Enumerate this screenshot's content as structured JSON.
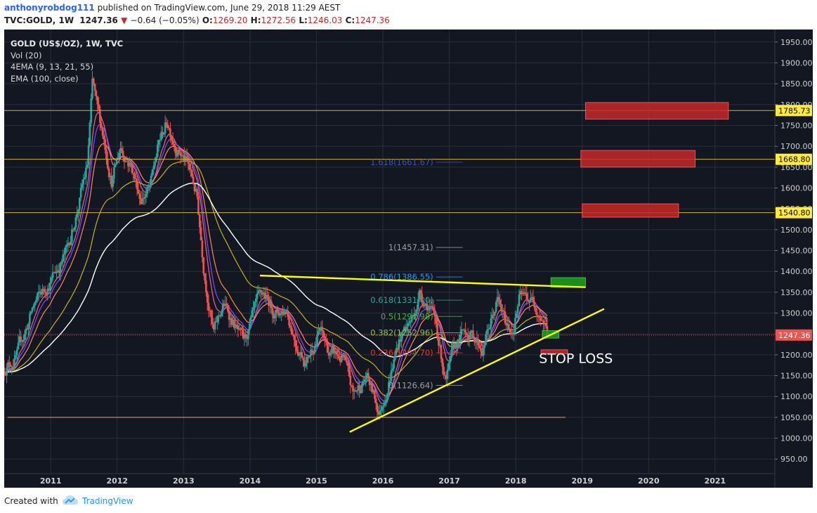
{
  "header": {
    "author": "anthonyrobdog111",
    "published_text": " published on TradingView.com, June 29, 2018 11:29 AEST",
    "symbol": "TVC:GOLD, 1W",
    "last": "1247.36",
    "change": "−0.64 (−0.05%)",
    "open_label": "O:",
    "open": "1269.20",
    "high_label": "H:",
    "high": "1272.56",
    "low_label": "L:",
    "low": "1246.03",
    "close_label": "C:",
    "close": "1247.36"
  },
  "legend": {
    "title": "GOLD (US$/OZ), 1W, TVC",
    "vol": "Vol (20)",
    "ema4": "4EMA (9, 13, 21, 55)",
    "ema100": "EMA (100, close)"
  },
  "footer": {
    "created_with": "Created with",
    "brand": "TradingView"
  },
  "colors": {
    "background": "#131722",
    "grid": "#2a2e39",
    "up_candle": "#26a69a",
    "down_candle": "#ef5350",
    "trendline": "#ffff00",
    "horizontal_level": "#d4af37",
    "target_box": "#c62828",
    "entry_box": "#1aa61a",
    "ema100": "#ffffff",
    "support_line": "#f0a050"
  },
  "chart_data": {
    "type": "candlestick",
    "y_range": [
      915,
      1980
    ],
    "y_ticks": [
      950,
      1000,
      1050,
      1100,
      1150,
      1200,
      1250,
      1300,
      1350,
      1400,
      1450,
      1500,
      1550,
      1600,
      1650,
      1700,
      1750,
      1800,
      1850,
      1900,
      1950
    ],
    "x_range_years": [
      2010.3,
      2021.9
    ],
    "x_ticks": [
      "2011",
      "2012",
      "2013",
      "2014",
      "2015",
      "2016",
      "2017",
      "2018",
      "2019",
      "2020",
      "2021"
    ],
    "price_path": [
      [
        2010.3,
        1170
      ],
      [
        2010.5,
        1200
      ],
      [
        2010.75,
        1320
      ],
      [
        2011.0,
        1380
      ],
      [
        2011.25,
        1450
      ],
      [
        2011.4,
        1550
      ],
      [
        2011.55,
        1650
      ],
      [
        2011.63,
        1850
      ],
      [
        2011.7,
        1780
      ],
      [
        2011.8,
        1720
      ],
      [
        2011.92,
        1620
      ],
      [
        2012.05,
        1700
      ],
      [
        2012.2,
        1660
      ],
      [
        2012.35,
        1580
      ],
      [
        2012.5,
        1600
      ],
      [
        2012.62,
        1700
      ],
      [
        2012.75,
        1760
      ],
      [
        2012.88,
        1710
      ],
      [
        2013.05,
        1660
      ],
      [
        2013.2,
        1580
      ],
      [
        2013.3,
        1420
      ],
      [
        2013.45,
        1250
      ],
      [
        2013.6,
        1320
      ],
      [
        2013.75,
        1280
      ],
      [
        2013.9,
        1220
      ],
      [
        2014.1,
        1310
      ],
      [
        2014.2,
        1340
      ],
      [
        2014.4,
        1300
      ],
      [
        2014.55,
        1310
      ],
      [
        2014.7,
        1230
      ],
      [
        2014.85,
        1190
      ],
      [
        2015.05,
        1260
      ],
      [
        2015.2,
        1200
      ],
      [
        2015.4,
        1190
      ],
      [
        2015.55,
        1100
      ],
      [
        2015.75,
        1150
      ],
      [
        2015.95,
        1060
      ],
      [
        2016.1,
        1150
      ],
      [
        2016.25,
        1240
      ],
      [
        2016.45,
        1290
      ],
      [
        2016.55,
        1350
      ],
      [
        2016.7,
        1320
      ],
      [
        2016.8,
        1270
      ],
      [
        2016.95,
        1135
      ],
      [
        2017.1,
        1220
      ],
      [
        2017.25,
        1260
      ],
      [
        2017.4,
        1240
      ],
      [
        2017.5,
        1215
      ],
      [
        2017.65,
        1290
      ],
      [
        2017.72,
        1330
      ],
      [
        2017.85,
        1270
      ],
      [
        2017.95,
        1260
      ],
      [
        2018.05,
        1335
      ],
      [
        2018.2,
        1335
      ],
      [
        2018.3,
        1325
      ],
      [
        2018.4,
        1295
      ],
      [
        2018.49,
        1247
      ]
    ],
    "fibonacci": [
      {
        "label": "1.618(1661.67)",
        "value": 1661.67
      },
      {
        "label": "1(1457.31)",
        "value": 1457.31
      },
      {
        "label": "0.786(1386.55)",
        "value": 1386.55
      },
      {
        "label": "0.618(1331.00)",
        "value": 1331.0
      },
      {
        "label": "0.5(1291.98)",
        "value": 1291.98
      },
      {
        "label": "0.382(1252.96)",
        "value": 1252.96
      },
      {
        "label": "0.236(1204.70)",
        "value": 1204.7
      },
      {
        "label": "0(1126.64)",
        "value": 1126.64
      }
    ],
    "horizontal_levels": [
      1785.73,
      1668.8,
      1540.8
    ],
    "price_labels": [
      "1785.73",
      "1668.80",
      "1540.80",
      "1247.36"
    ],
    "last_price": 1247.36,
    "support_level": 1050,
    "annotations": [
      {
        "text": "STOP LOSS"
      }
    ],
    "zones": {
      "targets": [
        {
          "t0": 2019.05,
          "t1": 2021.2,
          "p0": 1765,
          "p1": 1805
        },
        {
          "t0": 2018.98,
          "t1": 2020.7,
          "p0": 1650,
          "p1": 1690
        },
        {
          "t0": 2019.0,
          "t1": 2020.45,
          "p0": 1530,
          "p1": 1562
        }
      ],
      "entries": [
        {
          "t0": 2018.53,
          "t1": 2019.05,
          "p0": 1362,
          "p1": 1385
        },
        {
          "t0": 2018.4,
          "t1": 2018.65,
          "p0": 1240,
          "p1": 1258
        }
      ],
      "stop": {
        "t0": 2018.38,
        "t1": 2018.78,
        "p0": 1203,
        "p1": 1212
      }
    },
    "trendlines": [
      {
        "t0": 2014.15,
        "p0": 1390,
        "t1": 2019.05,
        "p1": 1362
      },
      {
        "t0": 2015.5,
        "p0": 1015,
        "t1": 2019.33,
        "p1": 1310
      }
    ]
  }
}
